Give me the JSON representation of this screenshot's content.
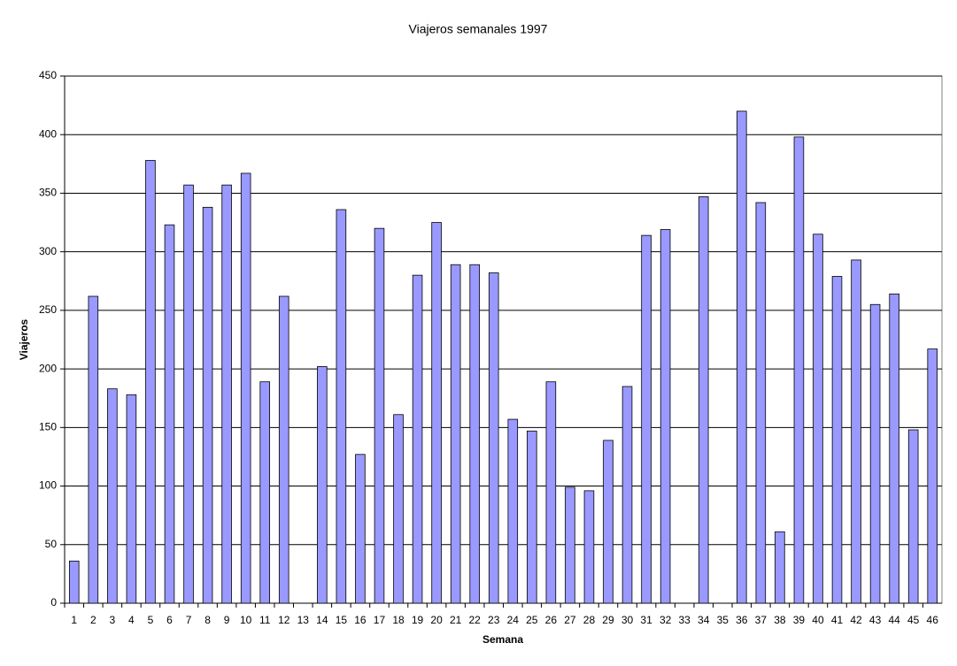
{
  "chart_data": {
    "type": "bar",
    "title": "Viajeros semanales 1997",
    "x_label": "Semana",
    "y_label": "Viajeros",
    "categories": [
      "1",
      "2",
      "3",
      "4",
      "5",
      "6",
      "7",
      "8",
      "9",
      "10",
      "11",
      "12",
      "13",
      "14",
      "15",
      "16",
      "17",
      "18",
      "19",
      "20",
      "21",
      "22",
      "23",
      "24",
      "25",
      "26",
      "27",
      "28",
      "29",
      "30",
      "31",
      "32",
      "33",
      "34",
      "35",
      "36",
      "37",
      "38",
      "39",
      "40",
      "41",
      "42",
      "43",
      "44",
      "45",
      "46"
    ],
    "values": [
      36,
      262,
      183,
      178,
      378,
      323,
      357,
      338,
      357,
      367,
      189,
      262,
      null,
      202,
      336,
      127,
      320,
      161,
      280,
      325,
      289,
      289,
      282,
      157,
      147,
      189,
      99,
      96,
      139,
      185,
      314,
      319,
      null,
      347,
      null,
      420,
      342,
      61,
      398,
      315,
      279,
      293,
      255,
      264,
      148,
      217
    ],
    "color": "#9999ff",
    "ylim": [
      0,
      450
    ],
    "yticks": [
      0,
      50,
      100,
      150,
      200,
      250,
      300,
      350,
      400,
      450
    ],
    "grid": true
  }
}
